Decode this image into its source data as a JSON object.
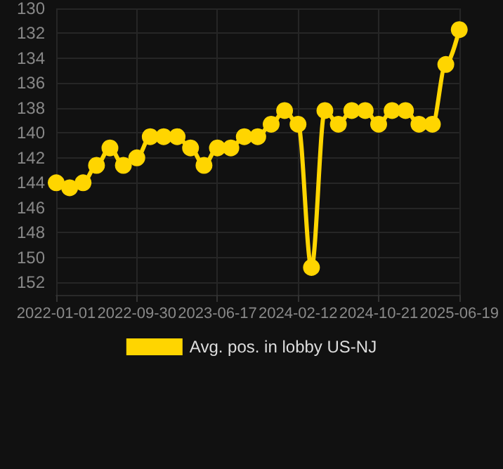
{
  "chart_data": {
    "type": "line",
    "categories": [
      "2022-01-01",
      null,
      null,
      null,
      null,
      null,
      "2022-09-30",
      null,
      null,
      null,
      null,
      null,
      "2023-06-17",
      null,
      null,
      null,
      null,
      null,
      "2024-02-12",
      null,
      null,
      null,
      null,
      null,
      "2024-10-21",
      null,
      null,
      null,
      null,
      null,
      "2025-06-19"
    ],
    "series": [
      {
        "name": "Avg. pos. in lobby US-NJ",
        "color": "#ffd500",
        "values": [
          144.0,
          144.4,
          144.0,
          142.6,
          141.2,
          142.6,
          142.0,
          140.3,
          140.3,
          140.3,
          141.2,
          142.6,
          141.2,
          141.2,
          140.3,
          140.3,
          139.3,
          138.2,
          139.3,
          150.8,
          138.2,
          139.3,
          138.2,
          138.2,
          139.3,
          138.2,
          138.2,
          139.3,
          139.3,
          134.5,
          131.7
        ]
      }
    ],
    "ylim": [
      153,
      130
    ],
    "yticks": [
      130,
      132,
      134,
      136,
      138,
      140,
      142,
      144,
      146,
      148,
      150,
      152
    ],
    "grid": true,
    "legend": "bottom",
    "marker": "circle",
    "line_style": "solid"
  }
}
